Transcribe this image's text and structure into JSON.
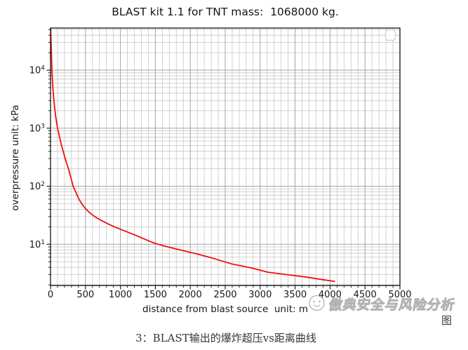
{
  "title": "BLAST kit 1.1 for TNT mass:  1068000 kg.",
  "caption": "3：BLAST输出的爆炸超压vs距离曲线",
  "figure_label": "图",
  "watermark": {
    "text": "傲典安全与风险分析",
    "icon": "circle-face-logo"
  },
  "chart_data": {
    "type": "line",
    "title": "BLAST kit 1.1 for TNT mass:  1068000 kg.",
    "xlabel": "distance from blast source  unit: m",
    "ylabel": "overpressure unit: kPa",
    "xlim": [
      0,
      5000
    ],
    "ylim": [
      1.95,
      53100
    ],
    "yscale": "log",
    "grid": true,
    "x_major_ticks": [
      0,
      500,
      1000,
      1500,
      2000,
      2500,
      3000,
      3500,
      4000,
      4500,
      5000
    ],
    "x_minor_step": 100,
    "y_major_ticks_exp": [
      1,
      2,
      3,
      4
    ],
    "legend": "empty-box-top-right",
    "colors": {
      "line": "#f20d0d",
      "grid_major": "#a3a3a3",
      "grid_minor": "#c6c6c6",
      "spine": "#111111",
      "tick_text": "#161616",
      "legend_border": "#d4d4d4"
    },
    "series": [
      {
        "name": "overpressure",
        "x": [
          2,
          8,
          15,
          20,
          28,
          38,
          47,
          60,
          72,
          85,
          100,
          120,
          140,
          160,
          182,
          204,
          230,
          260,
          295,
          323,
          360,
          400,
          447,
          500,
          560,
          632,
          720,
          820,
          913,
          1050,
          1200,
          1350,
          1480,
          1650,
          1850,
          2080,
          2290,
          2590,
          2880,
          3110,
          3380,
          3680,
          3900,
          4063
        ],
        "y": [
          53000,
          30000,
          16000,
          10000,
          6300,
          4200,
          3160,
          2200,
          1640,
          1300,
          1000,
          790,
          620,
          490,
          400,
          316,
          250,
          195,
          135,
          100,
          80,
          62,
          50,
          41,
          35,
          30,
          26,
          22.5,
          20,
          17.2,
          14.6,
          12.2,
          10.5,
          9.2,
          8.0,
          6.9,
          5.9,
          4.6,
          3.9,
          3.3,
          3.0,
          2.7,
          2.45,
          2.3
        ]
      }
    ]
  }
}
